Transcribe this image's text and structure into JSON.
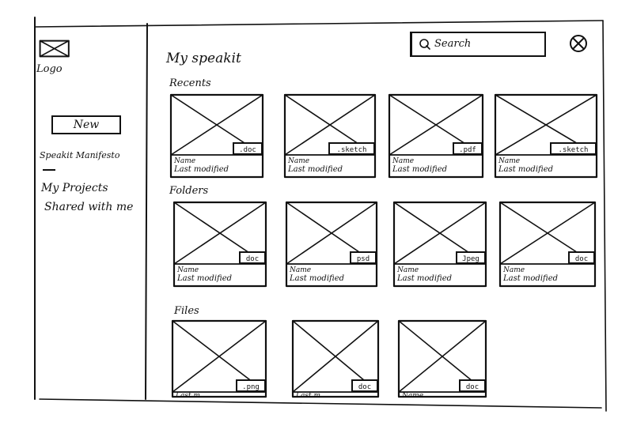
{
  "sidebar": {
    "logo_label": "Logo",
    "new_button": "New",
    "items": [
      {
        "label": "Speakit Manifesto"
      },
      {
        "label": "My Projects"
      },
      {
        "label": "Shared with me"
      }
    ]
  },
  "header": {
    "title": "My speakit",
    "search_placeholder": "Search"
  },
  "sections": {
    "recents": {
      "title": "Recents",
      "cards": [
        {
          "name": "Name",
          "meta": "Last modified",
          "ext": ".doc"
        },
        {
          "name": "Name",
          "meta": "Last modified",
          "ext": ".sketch"
        },
        {
          "name": "Name",
          "meta": "Last modified",
          "ext": ".pdf"
        },
        {
          "name": "Name",
          "meta": "Last modified",
          "ext": ".sketch"
        }
      ]
    },
    "folders": {
      "title": "Folders",
      "cards": [
        {
          "name": "Name",
          "meta": "Last modified",
          "ext": "doc"
        },
        {
          "name": "Name",
          "meta": "Last modified",
          "ext": "psd"
        },
        {
          "name": "Name",
          "meta": "Last modified",
          "ext": "Jpeg"
        },
        {
          "name": "Name",
          "meta": "Last modified",
          "ext": "doc"
        }
      ]
    },
    "files": {
      "title": "Files",
      "cards": [
        {
          "name": "Last m",
          "meta": "",
          "ext": ".png"
        },
        {
          "name": "Last m",
          "meta": "",
          "ext": "doc"
        },
        {
          "name": "Name",
          "meta": "",
          "ext": "doc"
        }
      ]
    }
  }
}
